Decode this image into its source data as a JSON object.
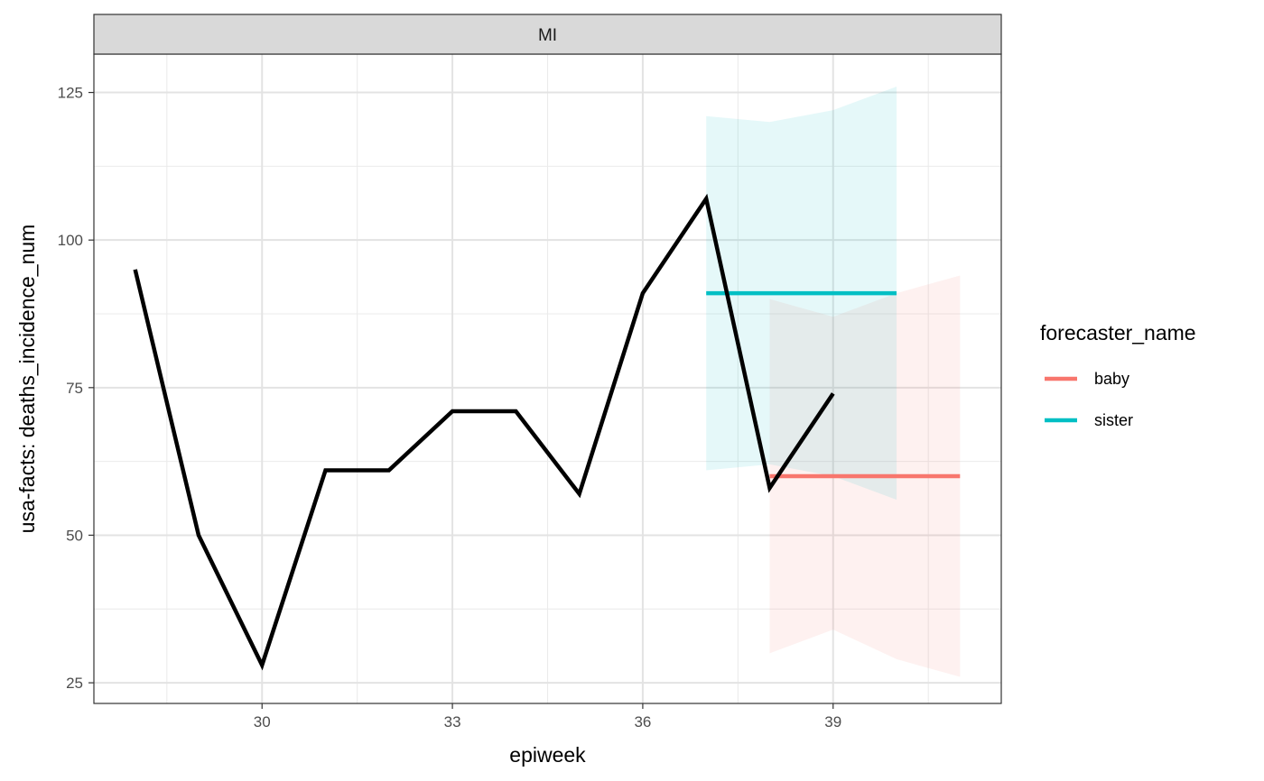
{
  "chart_data": {
    "type": "line",
    "facet": "MI",
    "xlabel": "epiweek",
    "ylabel": "usa-facts: deaths_incidence_num",
    "xlim": [
      27.35,
      41.65
    ],
    "ylim": [
      21.5,
      131.5
    ],
    "x_ticks": [
      30,
      33,
      36,
      39
    ],
    "y_ticks": [
      25,
      50,
      75,
      100,
      125
    ],
    "grid": true,
    "legend_title": "forecaster_name",
    "legend_position": "right",
    "observed": {
      "x": [
        28,
        29,
        30,
        31,
        32,
        33,
        34,
        35,
        36,
        37,
        38,
        39
      ],
      "y": [
        95,
        50,
        28,
        61,
        61,
        71,
        71,
        57,
        91,
        107,
        58,
        74
      ]
    },
    "series": [
      {
        "name": "baby",
        "color": "#F8766D",
        "x": [
          38,
          39,
          40,
          41
        ],
        "median": [
          60,
          60,
          60,
          60
        ],
        "lower": [
          30,
          34,
          29,
          26
        ],
        "upper": [
          90,
          87,
          91,
          94
        ]
      },
      {
        "name": "sister",
        "color": "#00BFC4",
        "x": [
          37,
          38,
          39,
          40
        ],
        "median": [
          91,
          91,
          91,
          91
        ],
        "lower": [
          61,
          62,
          60,
          56
        ],
        "upper": [
          121,
          120,
          122,
          126
        ]
      }
    ]
  }
}
